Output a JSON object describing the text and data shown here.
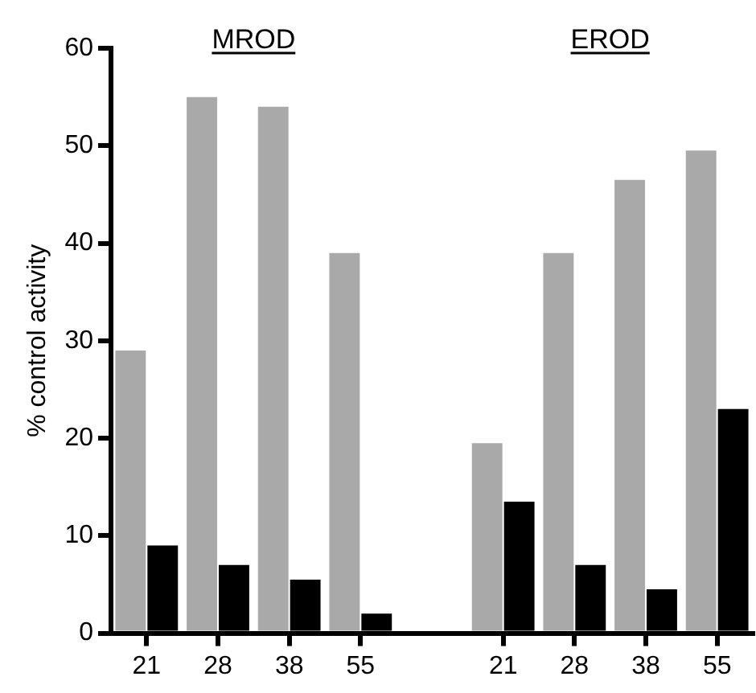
{
  "chart_data": {
    "type": "bar",
    "ylabel": "% control activity",
    "annotations": [
      "MROD",
      "EROD"
    ],
    "categories": [
      "21",
      "28",
      "38",
      "55",
      null,
      "21",
      "28",
      "38",
      "55"
    ],
    "series": [
      {
        "color": "#a9a9a9",
        "values": [
          29,
          55,
          54,
          39,
          null,
          19.5,
          39,
          46.5,
          49.5
        ]
      },
      {
        "color": "#000000",
        "values": [
          9,
          7,
          5.5,
          2,
          null,
          13.5,
          7,
          4.5,
          23
        ]
      }
    ],
    "ylim": [
      0,
      60
    ],
    "yticks": [
      0,
      10,
      20,
      30,
      40,
      50,
      60
    ],
    "grid": false,
    "legend": false
  }
}
